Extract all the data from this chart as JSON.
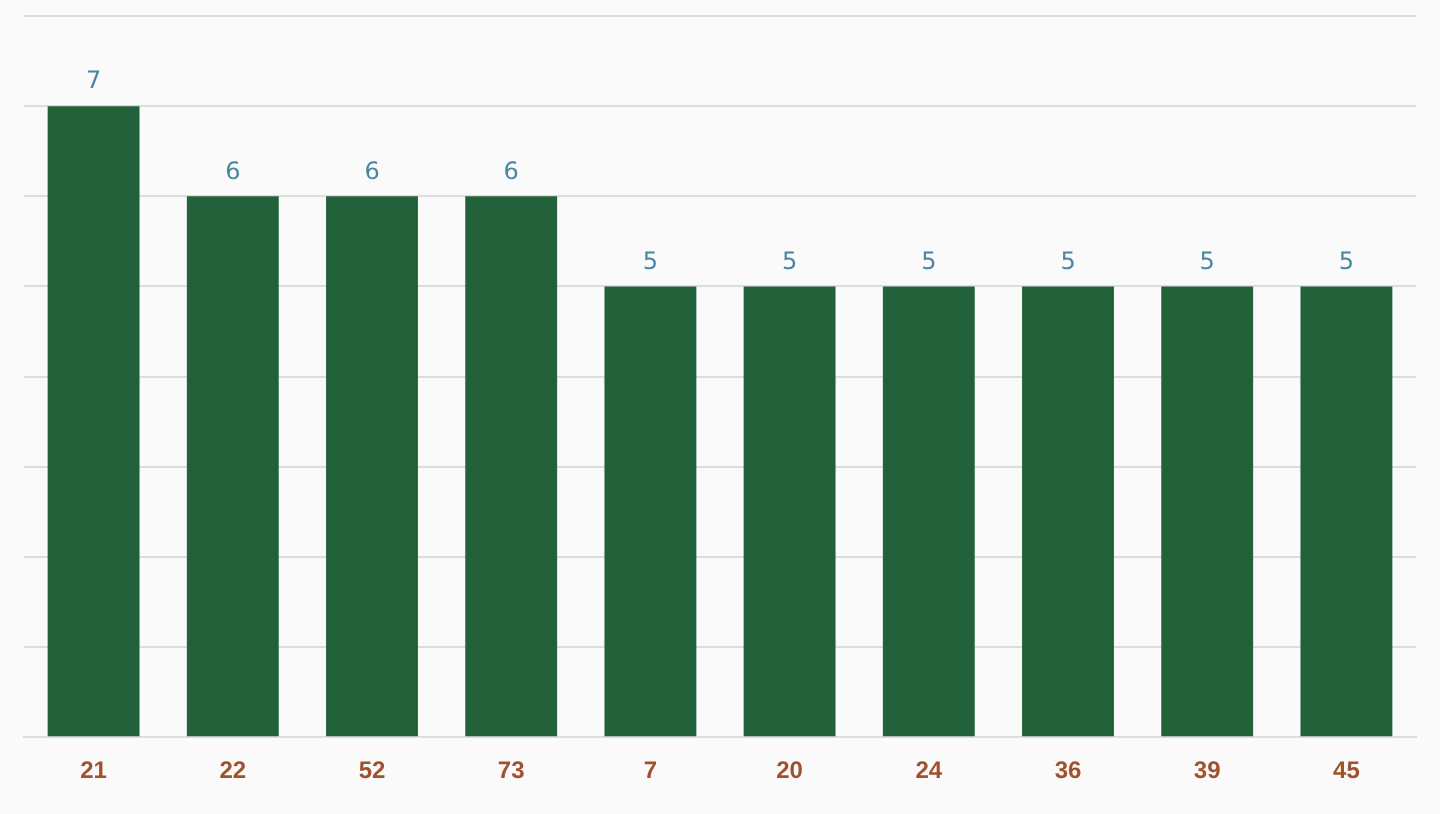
{
  "chart_data": {
    "type": "bar",
    "categories": [
      "21",
      "22",
      "52",
      "73",
      "7",
      "20",
      "24",
      "36",
      "39",
      "45"
    ],
    "values": [
      7,
      6,
      6,
      6,
      5,
      5,
      5,
      5,
      5,
      5
    ],
    "color": "#23613a",
    "ylim": [
      0,
      8
    ],
    "yticks": [
      {
        "value": 0,
        "label": null
      },
      {
        "value": 1,
        "label": null
      },
      {
        "value": 2,
        "label": null
      },
      {
        "value": 3,
        "label": null
      },
      {
        "value": 4,
        "label": null
      },
      {
        "value": 5,
        "label": null
      },
      {
        "value": 6,
        "label": null
      },
      {
        "value": 7,
        "label": null
      },
      {
        "value": 8,
        "label": null
      }
    ],
    "grid": "y",
    "tick_labels": "x",
    "data_labels": true,
    "legend": false
  }
}
